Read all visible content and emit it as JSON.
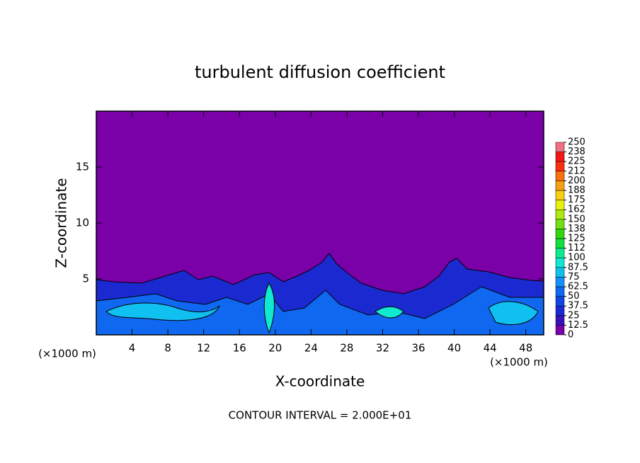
{
  "chart_data": {
    "type": "contour",
    "title": "turbulent diffusion coefficient",
    "x_label": "X-coordinate",
    "y_label": "Z-coordinate",
    "unit_label": "(×1000 m)",
    "annotation": "CONTOUR INTERVAL = 2.000E+01",
    "xlim": [
      0,
      50
    ],
    "xticks": [
      4,
      8,
      12,
      16,
      20,
      24,
      28,
      32,
      36,
      40,
      44,
      48
    ],
    "ylim": [
      0,
      20
    ],
    "yticks": [
      5,
      10,
      15
    ],
    "colorbar": {
      "ticks": [
        0,
        12.5,
        25,
        37.5,
        50,
        62.5,
        75,
        87.5,
        100,
        112,
        125,
        138,
        150,
        162,
        175,
        188,
        200,
        212,
        225,
        238,
        250
      ],
      "colors": [
        "#7a00a8",
        "#3a10b8",
        "#1b2ad0",
        "#1046e0",
        "#1068f0",
        "#1090f8",
        "#10c0f0",
        "#10e8d0",
        "#10e890",
        "#10e040",
        "#30d810",
        "#70e010",
        "#b0e810",
        "#e8f010",
        "#f8d010",
        "#f8a010",
        "#f87010",
        "#f83010",
        "#f01818",
        "#f07080"
      ]
    }
  }
}
